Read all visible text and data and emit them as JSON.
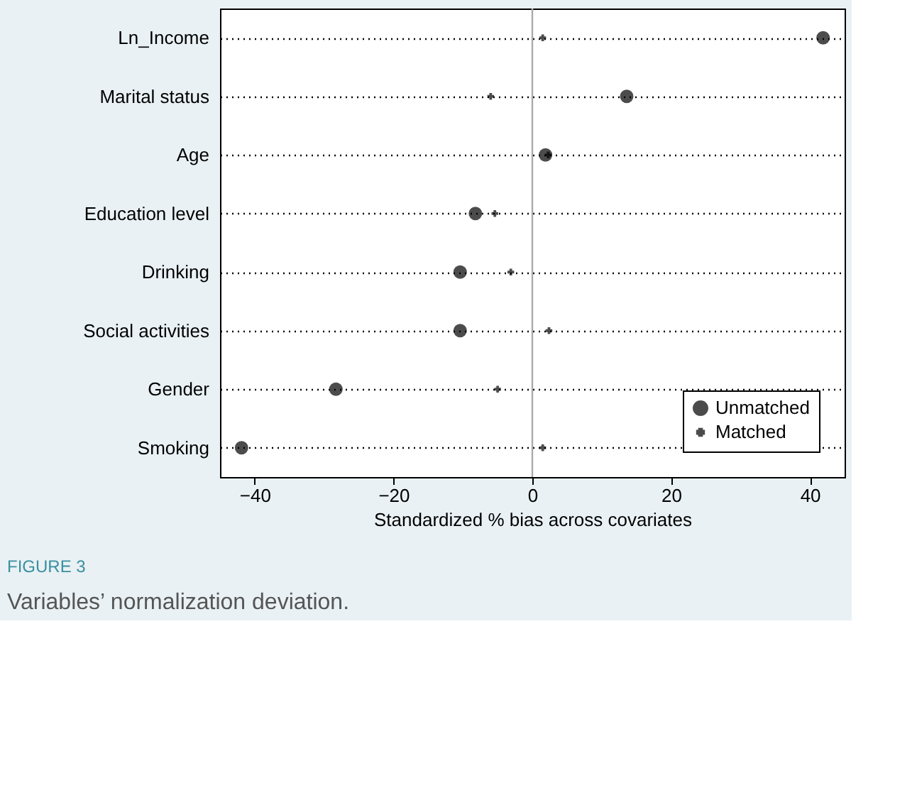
{
  "chart_data": {
    "type": "scatter",
    "xlabel": "Standardized % bias across covariates",
    "categories": [
      "Ln_Income",
      "Marital status",
      "Age",
      "Education level",
      "Drinking",
      "Social activities",
      "Gender",
      "Smoking"
    ],
    "orientation": "horizontal",
    "series": [
      {
        "name": "Unmatched",
        "color": "#000000",
        "marker": "circle",
        "values": [
          41.9,
          13.6,
          1.9,
          -8.2,
          -10.4,
          -10.4,
          -28.3,
          -41.9
        ]
      },
      {
        "name": "Matched",
        "color": "#000000",
        "marker": "cross",
        "values": [
          1.5,
          -6.0,
          2.3,
          -5.4,
          -3.1,
          2.4,
          -5.0,
          1.5
        ]
      }
    ],
    "xlim": [
      -45,
      45
    ],
    "xticks": [
      -40,
      -20,
      0,
      20,
      40
    ],
    "grid": "y",
    "line_style": "dotted",
    "legend": "bottom right",
    "ref_lines": [
      {
        "axis": "x",
        "value": 0,
        "color": "#aaaaaa"
      }
    ],
    "annotations": [
      "FIGURE 3",
      "Variables’ normalization deviation."
    ]
  }
}
